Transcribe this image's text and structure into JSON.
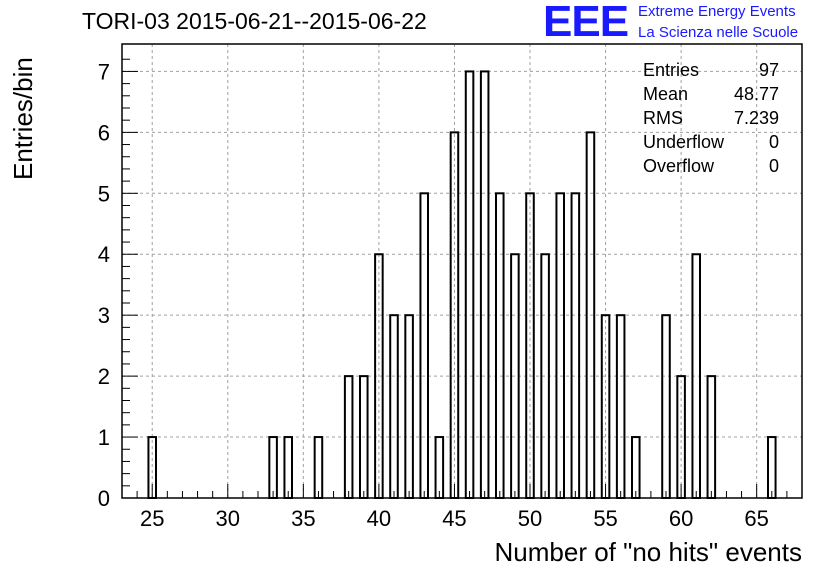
{
  "chart_data": {
    "type": "bar",
    "title": "TORI-03 2015-06-21--2015-06-22",
    "xlabel": "Number of \"no hits\" events",
    "ylabel": "Entries/bin",
    "xlim": [
      23,
      68
    ],
    "ylim": [
      0,
      7.45
    ],
    "x_ticks": [
      25,
      30,
      35,
      40,
      45,
      50,
      55,
      60,
      65
    ],
    "y_ticks": [
      0,
      1,
      2,
      3,
      4,
      5,
      6,
      7
    ],
    "grid": true,
    "bins": [
      {
        "x": 25,
        "y": 1
      },
      {
        "x": 33,
        "y": 1
      },
      {
        "x": 34,
        "y": 1
      },
      {
        "x": 36,
        "y": 1
      },
      {
        "x": 38,
        "y": 2
      },
      {
        "x": 39,
        "y": 2
      },
      {
        "x": 40,
        "y": 4
      },
      {
        "x": 41,
        "y": 3
      },
      {
        "x": 42,
        "y": 3
      },
      {
        "x": 43,
        "y": 5
      },
      {
        "x": 44,
        "y": 1
      },
      {
        "x": 45,
        "y": 6
      },
      {
        "x": 46,
        "y": 7
      },
      {
        "x": 47,
        "y": 7
      },
      {
        "x": 48,
        "y": 5
      },
      {
        "x": 49,
        "y": 4
      },
      {
        "x": 50,
        "y": 5
      },
      {
        "x": 51,
        "y": 4
      },
      {
        "x": 52,
        "y": 5
      },
      {
        "x": 53,
        "y": 5
      },
      {
        "x": 54,
        "y": 6
      },
      {
        "x": 55,
        "y": 3
      },
      {
        "x": 56,
        "y": 3
      },
      {
        "x": 57,
        "y": 1
      },
      {
        "x": 59,
        "y": 3
      },
      {
        "x": 60,
        "y": 2
      },
      {
        "x": 61,
        "y": 4
      },
      {
        "x": 62,
        "y": 2
      },
      {
        "x": 66,
        "y": 1
      }
    ],
    "stats": [
      {
        "label": "Entries",
        "value": "97"
      },
      {
        "label": "Mean",
        "value": "48.77"
      },
      {
        "label": "RMS",
        "value": "7.239"
      },
      {
        "label": "Underflow",
        "value": "0"
      },
      {
        "label": "Overflow",
        "value": "0"
      }
    ]
  },
  "logo": {
    "mark": "EEE",
    "line1": "Extreme Energy Events",
    "line2": "La Scienza nelle Scuole"
  },
  "colors": {
    "bar_stroke": "#000000",
    "grid": "#a0a0a0",
    "logo": "#1a1aff"
  }
}
